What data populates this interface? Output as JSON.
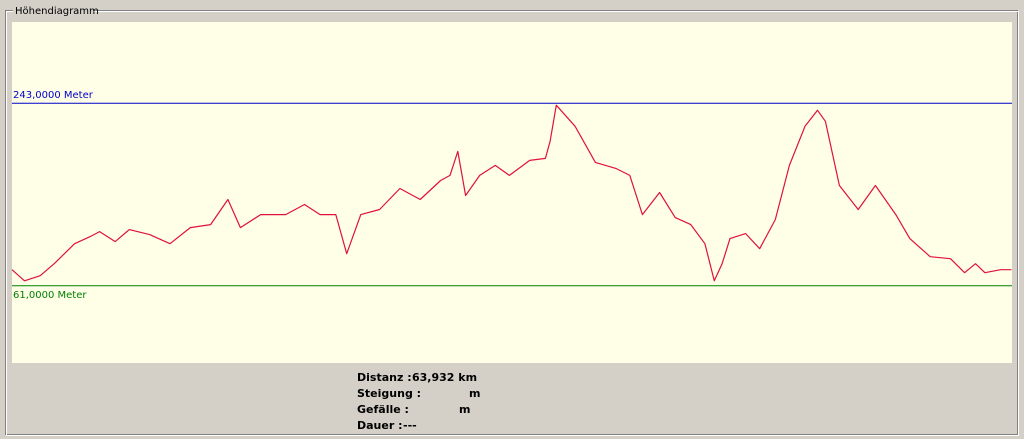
{
  "group_title": "Höhendiagramm",
  "chart_data": {
    "type": "line",
    "x": [
      0,
      0.8,
      1.8,
      2.7,
      4.0,
      5.0,
      5.6,
      6.6,
      7.5,
      8.8,
      10.1,
      11.4,
      12.7,
      13.8,
      14.6,
      15.9,
      17.5,
      18.7,
      19.7,
      20.7,
      21.4,
      22.3,
      23.5,
      24.8,
      26.1,
      27.4,
      28.0,
      28.5,
      29.0,
      29.9,
      30.9,
      31.8,
      33.1,
      34.1,
      34.4,
      34.8,
      36.0,
      37.3,
      38.6,
      39.5,
      40.3,
      41.4,
      42.4,
      43.4,
      44.3,
      44.9,
      45.4,
      45.9,
      46.9,
      47.8,
      48.8,
      49.7,
      50.7,
      51.5,
      52.0,
      52.9,
      54.1,
      55.2,
      56.5,
      57.4,
      58.7,
      60.0,
      60.9,
      61.6,
      62.2,
      63.2,
      63.9
    ],
    "series": [
      {
        "color": "#e0103c",
        "values": [
          77,
          66,
          71,
          83,
          103,
          110,
          115,
          105,
          117,
          112,
          103,
          119,
          122,
          147,
          119,
          132,
          132,
          142,
          132,
          132,
          93,
          132,
          137,
          158,
          147,
          166,
          171,
          195,
          151,
          171,
          181,
          171,
          186,
          188,
          205,
          241,
          220,
          184,
          178,
          171,
          132,
          154,
          129,
          122,
          103,
          66,
          83,
          108,
          113,
          98,
          127,
          181,
          220,
          236,
          225,
          161,
          137,
          161,
          132,
          108,
          90,
          88,
          74,
          83,
          74,
          77,
          77
        ]
      }
    ],
    "xlim": [
      0,
      63.932
    ],
    "ylim": [
      -16,
      324
    ],
    "yticks": [
      {
        "value": 243,
        "label": "243,0000 Meter",
        "color": "#0000c8"
      },
      {
        "value": 61,
        "label": "61,0000 Meter",
        "color": "#008000"
      }
    ],
    "background": "#ffffe8"
  },
  "stats": [
    {
      "label": "Distanz :",
      "value": "63,932 km"
    },
    {
      "label": "Steigung :",
      "unit": "m"
    },
    {
      "label": "Gefälle :",
      "unit": "m"
    },
    {
      "label": "Dauer :",
      "value": "---"
    }
  ]
}
